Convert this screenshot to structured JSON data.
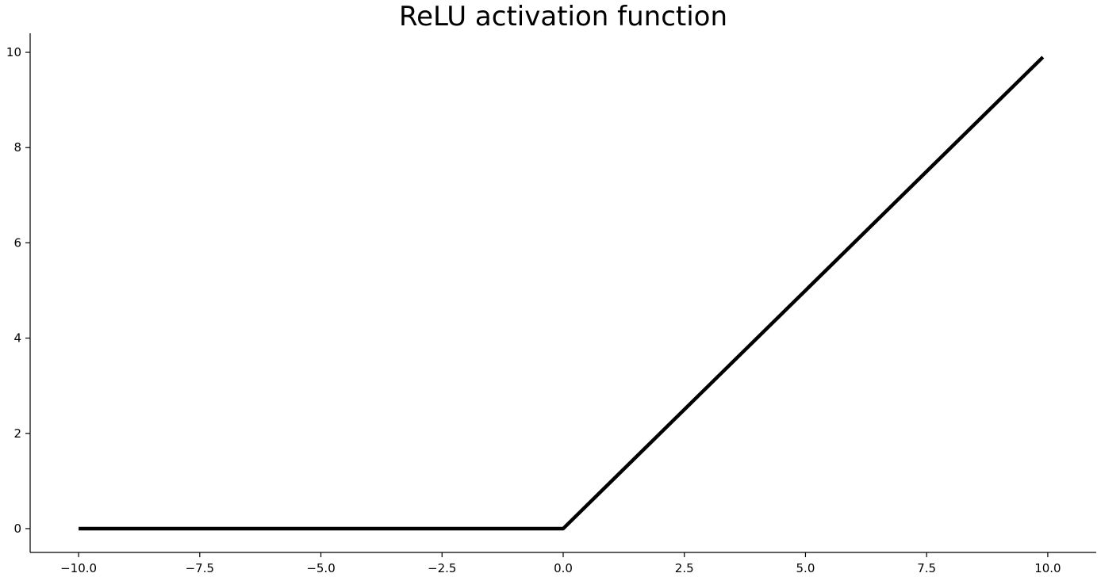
{
  "chart_data": {
    "type": "line",
    "title": "ReLU activation function",
    "xlabel": "",
    "ylabel": "",
    "xlim": [
      -11.0,
      11.0
    ],
    "ylim": [
      -0.5,
      10.4
    ],
    "x_ticks": [
      -10.0,
      -7.5,
      -5.0,
      -2.5,
      0.0,
      2.5,
      5.0,
      7.5,
      10.0
    ],
    "x_tick_labels": [
      "−10.0",
      "−7.5",
      "−5.0",
      "−2.5",
      "0.0",
      "2.5",
      "5.0",
      "7.5",
      "10.0"
    ],
    "y_ticks": [
      0,
      2,
      4,
      6,
      8,
      10
    ],
    "y_tick_labels": [
      "0",
      "2",
      "4",
      "6",
      "8",
      "10"
    ],
    "grid": false,
    "series": [
      {
        "x": [
          -10.0,
          0.0,
          9.9
        ],
        "y": [
          0.0,
          0.0,
          9.9
        ],
        "color": "#000000"
      }
    ]
  }
}
